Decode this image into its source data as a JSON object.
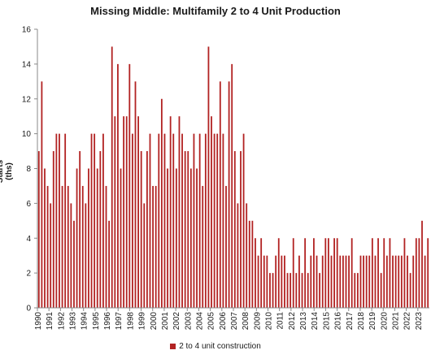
{
  "chart_data": {
    "type": "bar",
    "title": "Missing Middle: Multifamily 2 to 4 Unit Production",
    "xlabel": "",
    "ylabel": "Starts (ths)",
    "ylim": [
      0,
      16
    ],
    "yticks": [
      0,
      2,
      4,
      6,
      8,
      10,
      12,
      14,
      16
    ],
    "grid": false,
    "legend_position": "bottom",
    "bar_color": "#b22222",
    "x_tick_labels": [
      "1990",
      "1991",
      "1992",
      "1993",
      "1994",
      "1995",
      "1996",
      "1997",
      "1998",
      "1999",
      "2000",
      "2001",
      "2002",
      "2003",
      "2004",
      "2005",
      "2006",
      "2007",
      "2008",
      "2009",
      "2010",
      "2011",
      "2012",
      "2013",
      "2014",
      "2015",
      "2016",
      "2017",
      "2018",
      "2019",
      "2020",
      "2021",
      "2022",
      "2023"
    ],
    "series": [
      {
        "name": "2 to 4 unit construction",
        "values": [
          9,
          13,
          8,
          7,
          6,
          9,
          10,
          10,
          7,
          10,
          7,
          6,
          5,
          8,
          9,
          7,
          6,
          8,
          10,
          10,
          8,
          9,
          10,
          7,
          5,
          15,
          11,
          14,
          8,
          11,
          11,
          14,
          10,
          13,
          11,
          9,
          6,
          9,
          10,
          7,
          7,
          10,
          12,
          10,
          8,
          11,
          10,
          8,
          11,
          10,
          9,
          9,
          8,
          10,
          8,
          10,
          7,
          10,
          15,
          11,
          10,
          10,
          13,
          10,
          7,
          13,
          14,
          9,
          6,
          9,
          10,
          6,
          5,
          5,
          4,
          3,
          4,
          3,
          3,
          2,
          2,
          3,
          4,
          3,
          3,
          2,
          2,
          4,
          2,
          3,
          2,
          4,
          2,
          3,
          4,
          3,
          2,
          3,
          4,
          4,
          3,
          4,
          4,
          3,
          3,
          3,
          3,
          4,
          2,
          2,
          3,
          3,
          3,
          3,
          4,
          3,
          4,
          2,
          4,
          3,
          4,
          3,
          3,
          3,
          3,
          4,
          3,
          2,
          3,
          4,
          4,
          5,
          3,
          4
        ]
      }
    ]
  }
}
